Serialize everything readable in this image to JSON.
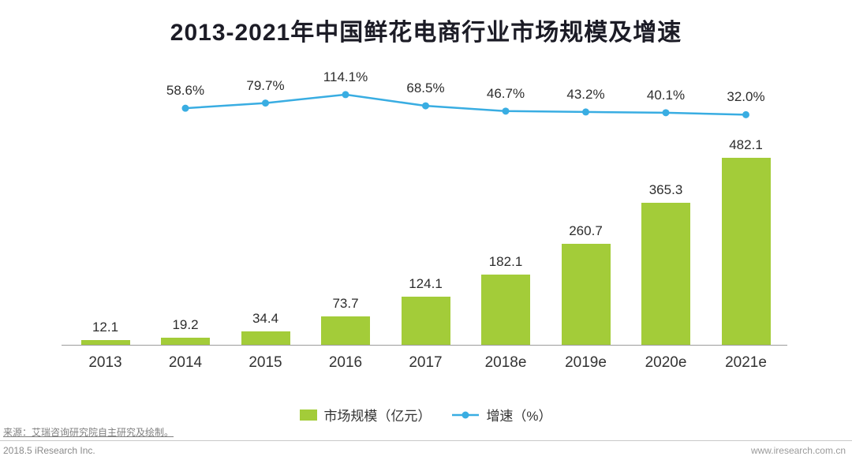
{
  "title": "2013-2021年中国鲜花电商行业市场规模及增速",
  "colors": {
    "bar": "#a3cc39",
    "line": "#39ade2",
    "title": "#1c1c26"
  },
  "chart_data": {
    "type": "bar+line",
    "title": "2013-2021年中国鲜花电商行业市场规模及增速",
    "categories": [
      "2013",
      "2014",
      "2015",
      "2016",
      "2017",
      "2018e",
      "2019e",
      "2020e",
      "2021e"
    ],
    "series": [
      {
        "name": "市场规模（亿元）",
        "type": "bar",
        "color": "#a3cc39",
        "values": [
          12.1,
          19.2,
          34.4,
          73.7,
          124.1,
          182.1,
          260.7,
          365.3,
          482.1
        ],
        "labels": [
          "12.1",
          "19.2",
          "34.4",
          "73.7",
          "124.1",
          "182.1",
          "260.7",
          "365.3",
          "482.1"
        ]
      },
      {
        "name": "增速（%）",
        "type": "line",
        "color": "#39ade2",
        "start_category_index": 1,
        "values": [
          58.6,
          79.7,
          114.1,
          68.5,
          46.7,
          43.2,
          40.1,
          32.0
        ],
        "labels": [
          "58.6%",
          "79.7%",
          "114.1%",
          "68.5%",
          "46.7%",
          "43.2%",
          "40.1%",
          "32.0%"
        ]
      }
    ],
    "ylabel": "",
    "xlabel": "",
    "ylim": [
      0,
      500
    ],
    "grid": false,
    "legend_position": "bottom"
  },
  "legend": {
    "bar_label": "市场规模（亿元）",
    "line_label": "增速（%）"
  },
  "footer": {
    "source": "来源：艾瑞咨询研究院自主研究及绘制。",
    "date_company": "2018.5 iResearch Inc.",
    "website": "www.iresearch.com.cn"
  }
}
